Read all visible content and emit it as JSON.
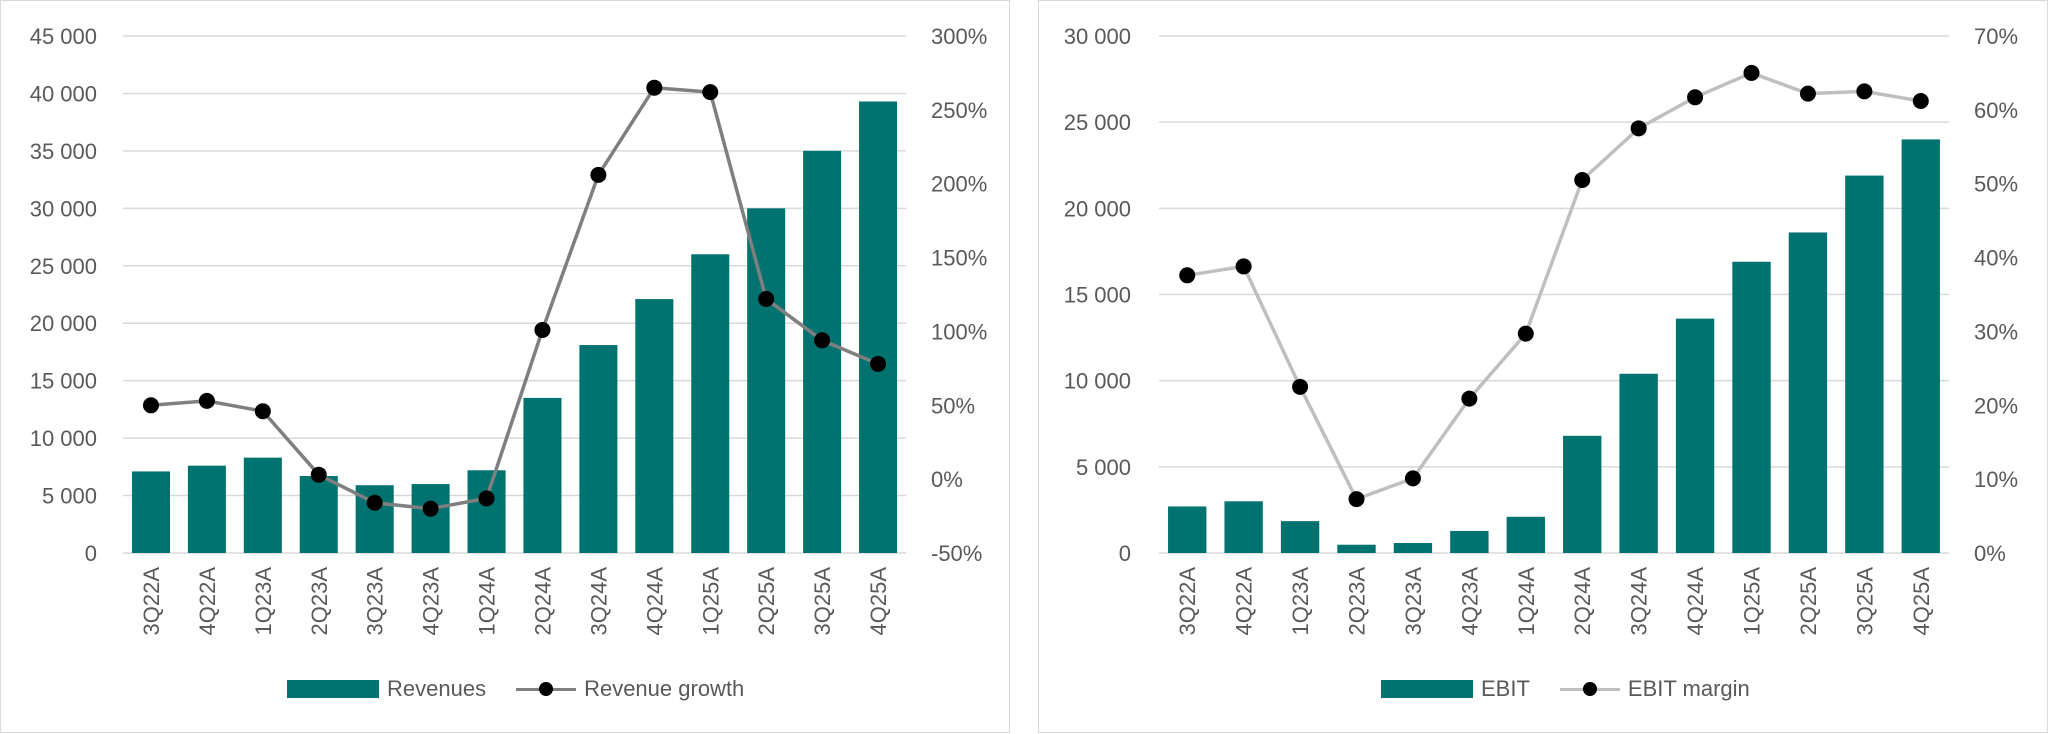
{
  "chart_data": [
    {
      "type": "bar",
      "categories": [
        "3Q22A",
        "4Q22A",
        "1Q23A",
        "2Q23A",
        "3Q23A",
        "4Q23A",
        "1Q24A",
        "2Q24A",
        "3Q24A",
        "4Q24A",
        "1Q25A",
        "2Q25A",
        "3Q25A",
        "4Q25A"
      ],
      "series": [
        {
          "name": "Revenues",
          "kind": "bar",
          "axis": "primary",
          "color": "#007270",
          "values": [
            7100,
            7600,
            8300,
            6700,
            5900,
            6000,
            7200,
            13500,
            18100,
            22100,
            26000,
            30000,
            35000,
            39300
          ]
        },
        {
          "name": "Revenue growth",
          "kind": "line",
          "axis": "secondary",
          "color": "#7f7f7f",
          "marker_color": "#000000",
          "values": [
            50,
            53,
            46,
            3,
            -16,
            -20,
            -13,
            101,
            206,
            265,
            262,
            122,
            94,
            78
          ]
        }
      ],
      "ylim": [
        0,
        45000
      ],
      "yticks": [
        0,
        5000,
        10000,
        15000,
        20000,
        25000,
        30000,
        35000,
        40000,
        45000
      ],
      "ytick_labels": [
        "0",
        "5 000",
        "10 000",
        "15 000",
        "20 000",
        "25 000",
        "30 000",
        "35 000",
        "40 000",
        "45 000"
      ],
      "y2lim": [
        -50,
        300
      ],
      "y2ticks": [
        -50,
        0,
        50,
        100,
        150,
        200,
        250,
        300
      ],
      "y2tick_labels": [
        "-50%",
        "0%",
        "50%",
        "100%",
        "150%",
        "200%",
        "250%",
        "300%"
      ],
      "grid": true,
      "legend_position": "bottom"
    },
    {
      "type": "bar",
      "categories": [
        "3Q22A",
        "4Q22A",
        "1Q23A",
        "2Q23A",
        "3Q23A",
        "4Q23A",
        "1Q24A",
        "2Q24A",
        "3Q24A",
        "4Q24A",
        "1Q25A",
        "2Q25A",
        "3Q25A",
        "4Q25A"
      ],
      "series": [
        {
          "name": "EBIT",
          "kind": "bar",
          "axis": "primary",
          "color": "#007270",
          "values": [
            2700,
            3000,
            1850,
            480,
            580,
            1280,
            2100,
            6800,
            10400,
            13600,
            16900,
            18600,
            21900,
            24000
          ]
        },
        {
          "name": "EBIT margin",
          "kind": "line",
          "axis": "secondary",
          "color": "#bfbfbf",
          "marker_color": "#000000",
          "values": [
            37.6,
            38.8,
            22.5,
            7.3,
            10.1,
            20.9,
            29.7,
            50.5,
            57.5,
            61.7,
            65,
            62.2,
            62.5,
            61.2
          ]
        }
      ],
      "ylim": [
        0,
        30000
      ],
      "yticks": [
        0,
        5000,
        10000,
        15000,
        20000,
        25000,
        30000
      ],
      "ytick_labels": [
        "0",
        "5 000",
        "10 000",
        "15 000",
        "20 000",
        "25 000",
        "30 000"
      ],
      "y2lim": [
        0,
        70
      ],
      "y2ticks": [
        0,
        10,
        20,
        30,
        40,
        50,
        60,
        70
      ],
      "y2tick_labels": [
        "0%",
        "10%",
        "20%",
        "30%",
        "40%",
        "50%",
        "60%",
        "70%"
      ],
      "grid": true,
      "legend_position": "bottom"
    }
  ]
}
